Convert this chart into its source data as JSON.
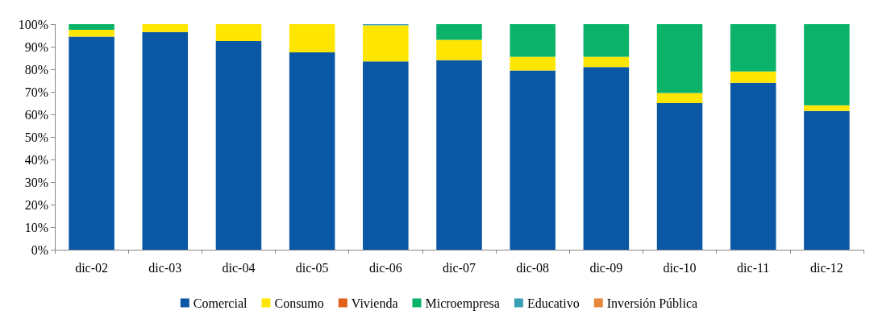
{
  "chart_data": {
    "type": "bar",
    "stacked": true,
    "categories": [
      "dic-02",
      "dic-03",
      "dic-04",
      "dic-05",
      "dic-06",
      "dic-07",
      "dic-08",
      "dic-09",
      "dic-10",
      "dic-11",
      "dic-12"
    ],
    "series": [
      {
        "name": "Comercial",
        "color": "#0a57a6",
        "values": [
          94.5,
          96.5,
          92.5,
          87.5,
          83.5,
          84,
          79.5,
          81,
          65,
          74,
          61.5
        ]
      },
      {
        "name": "Consumo",
        "color": "#ffe600",
        "values": [
          3,
          3.5,
          7.5,
          12.5,
          16,
          9,
          6,
          4.5,
          4.5,
          5,
          2.5
        ]
      },
      {
        "name": "Vivienda",
        "color": "#e0601c",
        "values": [
          0,
          0,
          0,
          0,
          0,
          0,
          0,
          0,
          0,
          0,
          0
        ]
      },
      {
        "name": "Microempresa",
        "color": "#0bb36a",
        "values": [
          2.5,
          0,
          0,
          0,
          0,
          7,
          14.5,
          14.5,
          30.5,
          21,
          36
        ]
      },
      {
        "name": "Educativo",
        "color": "#3a9fb5",
        "values": [
          0,
          0,
          0,
          0,
          0.5,
          0,
          0,
          0,
          0,
          0,
          0
        ]
      },
      {
        "name": "Inversión Pública",
        "color": "#e8873a",
        "values": [
          0,
          0,
          0,
          0,
          0,
          0,
          0,
          0,
          0,
          0,
          0
        ]
      }
    ],
    "ylim": [
      0,
      100
    ],
    "yticks": [
      {
        "value": 0,
        "label": "0%"
      },
      {
        "value": 10,
        "label": "10%"
      },
      {
        "value": 20,
        "label": "20%"
      },
      {
        "value": 30,
        "label": "30%"
      },
      {
        "value": 40,
        "label": "40%"
      },
      {
        "value": 50,
        "label": "50%"
      },
      {
        "value": 60,
        "label": "60%"
      },
      {
        "value": 70,
        "label": "70%"
      },
      {
        "value": 80,
        "label": "80%"
      },
      {
        "value": 90,
        "label": "90%"
      },
      {
        "value": 100,
        "label": "100%"
      }
    ],
    "legend": "bottom"
  }
}
